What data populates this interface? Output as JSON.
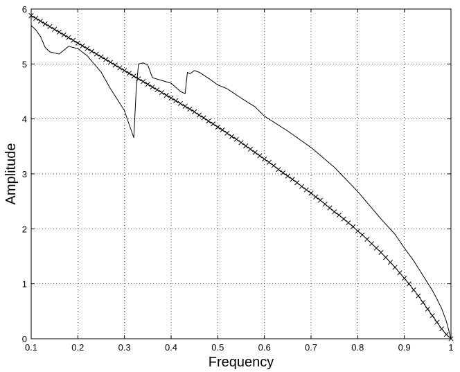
{
  "chart_data": {
    "type": "line",
    "title": "",
    "xlabel": "Frequency",
    "ylabel": "Amplitude",
    "xlim": [
      0.1,
      1.0
    ],
    "ylim": [
      0,
      6
    ],
    "xticks": [
      0.1,
      0.2,
      0.3,
      0.4,
      0.5,
      0.6,
      0.7,
      0.8,
      0.9,
      1.0
    ],
    "xtick_labels": [
      "0.1",
      "0.2",
      "0.3",
      "0.4",
      "0.5",
      "0.6",
      "0.7",
      "0.8",
      "0.9",
      "1"
    ],
    "yticks": [
      0,
      1,
      2,
      3,
      4,
      5,
      6
    ],
    "ytick_labels": [
      "0",
      "1",
      "2",
      "3",
      "4",
      "5",
      "6"
    ],
    "grid": true,
    "grid_style": "dotted",
    "legend": "none",
    "series": [
      {
        "line_style": "solid",
        "marker": "none",
        "color": "#000000",
        "x": [
          0.1,
          0.11,
          0.12,
          0.13,
          0.14,
          0.16,
          0.17,
          0.18,
          0.2,
          0.22,
          0.25,
          0.27,
          0.3,
          0.31,
          0.32,
          0.325,
          0.33,
          0.34,
          0.35,
          0.36,
          0.38,
          0.4,
          0.42,
          0.43,
          0.435,
          0.44,
          0.45,
          0.46,
          0.48,
          0.5,
          0.52,
          0.55,
          0.58,
          0.6,
          0.65,
          0.7,
          0.75,
          0.8,
          0.85,
          0.88,
          0.9,
          0.92,
          0.94,
          0.96,
          0.97,
          0.98,
          0.99,
          1.0
        ],
        "y": [
          5.7,
          5.62,
          5.5,
          5.3,
          5.22,
          5.18,
          5.25,
          5.32,
          5.28,
          5.15,
          4.85,
          4.55,
          4.15,
          3.9,
          3.66,
          4.5,
          5.0,
          5.02,
          4.98,
          4.75,
          4.7,
          4.65,
          4.5,
          4.46,
          4.85,
          4.82,
          4.88,
          4.85,
          4.74,
          4.62,
          4.55,
          4.38,
          4.22,
          4.05,
          3.78,
          3.48,
          3.12,
          2.68,
          2.18,
          1.9,
          1.65,
          1.42,
          1.15,
          0.88,
          0.72,
          0.55,
          0.32,
          0.0
        ]
      },
      {
        "line_style": "solid",
        "marker": "x",
        "color": "#000000",
        "x": [
          0.1,
          0.11,
          0.12,
          0.13,
          0.14,
          0.15,
          0.16,
          0.17,
          0.18,
          0.19,
          0.2,
          0.21,
          0.22,
          0.23,
          0.24,
          0.25,
          0.26,
          0.27,
          0.28,
          0.29,
          0.3,
          0.31,
          0.32,
          0.33,
          0.34,
          0.35,
          0.36,
          0.37,
          0.38,
          0.39,
          0.4,
          0.41,
          0.42,
          0.43,
          0.44,
          0.45,
          0.46,
          0.47,
          0.48,
          0.49,
          0.5,
          0.51,
          0.52,
          0.53,
          0.54,
          0.55,
          0.56,
          0.57,
          0.58,
          0.59,
          0.6,
          0.61,
          0.62,
          0.63,
          0.64,
          0.65,
          0.66,
          0.67,
          0.68,
          0.69,
          0.7,
          0.71,
          0.72,
          0.73,
          0.74,
          0.75,
          0.76,
          0.77,
          0.78,
          0.79,
          0.8,
          0.81,
          0.82,
          0.83,
          0.84,
          0.85,
          0.86,
          0.87,
          0.88,
          0.89,
          0.9,
          0.91,
          0.92,
          0.93,
          0.94,
          0.95,
          0.96,
          0.97,
          0.98,
          0.99,
          1.0
        ],
        "y": [
          5.88,
          5.83,
          5.78,
          5.73,
          5.68,
          5.63,
          5.58,
          5.53,
          5.48,
          5.43,
          5.38,
          5.33,
          5.28,
          5.23,
          5.18,
          5.13,
          5.08,
          5.03,
          4.98,
          4.93,
          4.88,
          4.83,
          4.78,
          4.73,
          4.68,
          4.63,
          4.58,
          4.53,
          4.48,
          4.43,
          4.38,
          4.33,
          4.28,
          4.23,
          4.18,
          4.13,
          4.07,
          4.02,
          3.96,
          3.91,
          3.85,
          3.8,
          3.74,
          3.68,
          3.63,
          3.57,
          3.51,
          3.45,
          3.39,
          3.33,
          3.27,
          3.21,
          3.15,
          3.08,
          3.02,
          2.96,
          2.9,
          2.84,
          2.77,
          2.71,
          2.65,
          2.58,
          2.52,
          2.45,
          2.38,
          2.31,
          2.25,
          2.18,
          2.11,
          2.04,
          1.96,
          1.89,
          1.81,
          1.73,
          1.65,
          1.57,
          1.48,
          1.39,
          1.3,
          1.2,
          1.1,
          1.0,
          0.89,
          0.78,
          0.66,
          0.54,
          0.42,
          0.3,
          0.18,
          0.08,
          0.0
        ]
      }
    ]
  }
}
